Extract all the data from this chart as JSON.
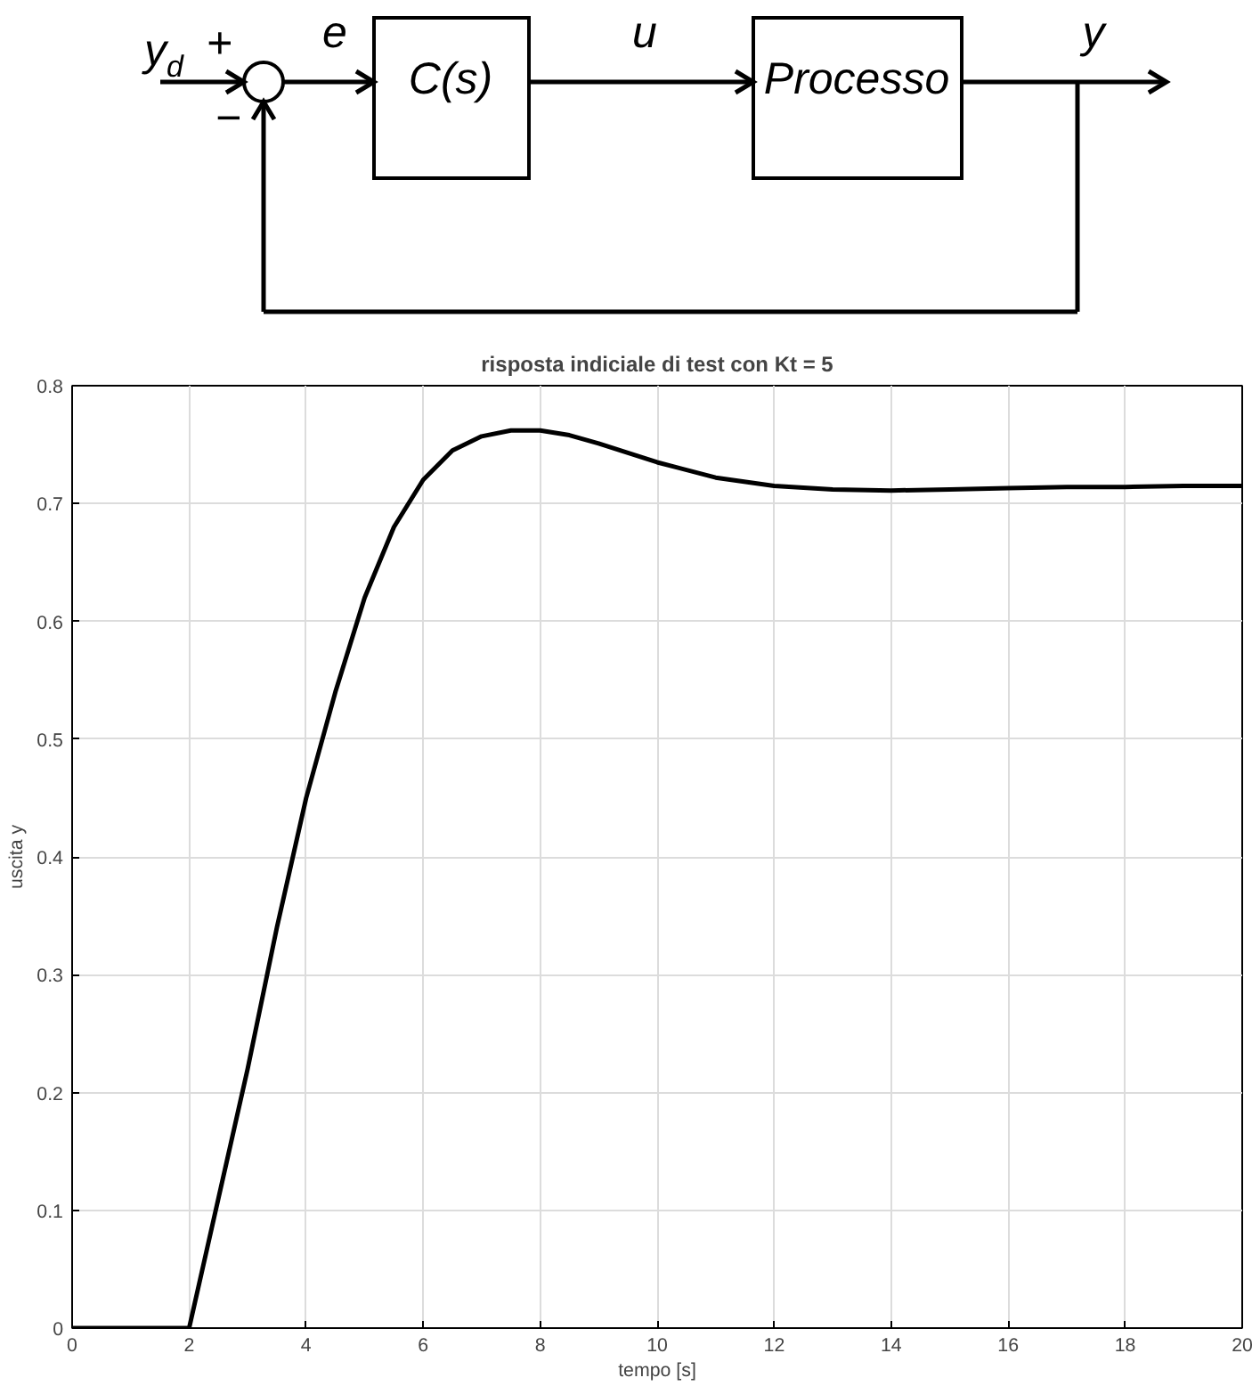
{
  "chart_data": [
    {
      "type": "other",
      "annotations": [
        "y$_{d}$",
        "+",
        "−",
        "e",
        "C(s)",
        "u",
        "Processo",
        "y"
      ]
    },
    {
      "type": "line",
      "title": "risposta indiciale di test con Kt = 5",
      "xlabel": "tempo [s]",
      "ylabel": "uscita y",
      "x": [
        0,
        1,
        2,
        2.5,
        3,
        3.5,
        4,
        4.5,
        5,
        5.5,
        6,
        6.5,
        7,
        7.5,
        8,
        8.5,
        9,
        10,
        11,
        12,
        13,
        14,
        15,
        16,
        17,
        18,
        19,
        20
      ],
      "series": [
        {
          "color": "#000000",
          "values": [
            0,
            0,
            0,
            0.11,
            0.22,
            0.34,
            0.45,
            0.54,
            0.62,
            0.68,
            0.72,
            0.745,
            0.757,
            0.762,
            0.762,
            0.758,
            0.751,
            0.735,
            0.722,
            0.715,
            0.712,
            0.711,
            0.712,
            0.713,
            0.714,
            0.714,
            0.715,
            0.715
          ]
        }
      ],
      "xlim": [
        0,
        20
      ],
      "ylim": [
        0,
        0.8
      ],
      "xticks": [
        0,
        2,
        4,
        6,
        8,
        10,
        12,
        14,
        16,
        18,
        20
      ],
      "yticks": [
        0,
        0.1,
        0.2,
        0.3,
        0.4,
        0.5,
        0.6,
        0.7,
        0.8
      ],
      "grid": true,
      "line_style": "solid"
    }
  ]
}
